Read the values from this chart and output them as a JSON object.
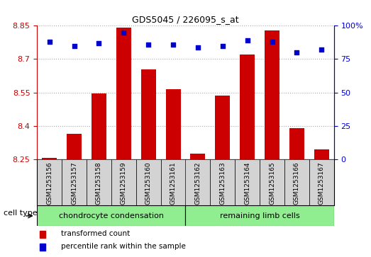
{
  "title": "GDS5045 / 226095_s_at",
  "categories": [
    "GSM1253156",
    "GSM1253157",
    "GSM1253158",
    "GSM1253159",
    "GSM1253160",
    "GSM1253161",
    "GSM1253162",
    "GSM1253163",
    "GSM1253164",
    "GSM1253165",
    "GSM1253166",
    "GSM1253167"
  ],
  "bar_values": [
    8.255,
    8.365,
    8.545,
    8.84,
    8.655,
    8.565,
    8.275,
    8.535,
    8.72,
    8.83,
    8.39,
    8.295
  ],
  "percentile_values": [
    88,
    85,
    87,
    95,
    86,
    86,
    84,
    85,
    89,
    88,
    80,
    82
  ],
  "bar_bottom": 8.25,
  "ylim_left": [
    8.25,
    8.85
  ],
  "ylim_right": [
    0,
    100
  ],
  "yticks_left": [
    8.25,
    8.4,
    8.55,
    8.7,
    8.85
  ],
  "ytick_labels_left": [
    "8.25",
    "8.4",
    "8.55",
    "8.7",
    "8.85"
  ],
  "yticks_right": [
    0,
    25,
    50,
    75,
    100
  ],
  "ytick_labels_right": [
    "0",
    "25",
    "50",
    "75",
    "100%"
  ],
  "bar_color": "#cc0000",
  "dot_color": "#0000cc",
  "grid_color": "#aaaaaa",
  "cell_type_groups": [
    {
      "label": "chondrocyte condensation",
      "start": 0,
      "end": 5
    },
    {
      "label": "remaining limb cells",
      "start": 6,
      "end": 11
    }
  ],
  "group_color": "#90ee90",
  "cell_type_label": "cell type",
  "legend_bar_label": "transformed count",
  "legend_dot_label": "percentile rank within the sample",
  "bar_color_left_axis": "#cc0000",
  "dot_color_right_axis": "#0000cc",
  "tick_bg_color": "#d3d3d3",
  "plot_bg_color": "#ffffff",
  "fig_bg_color": "#ffffff"
}
